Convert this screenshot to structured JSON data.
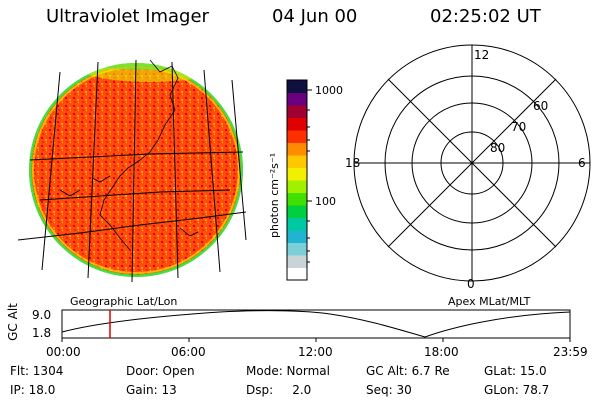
{
  "header": {
    "instrument": "Ultraviolet Imager",
    "date": "04 Jun 00",
    "time": "02:25:02 UT"
  },
  "colorbar": {
    "unit_label": "photon cm⁻²s⁻¹",
    "tick_1000": "1000",
    "tick_100": "100",
    "colors": [
      "#ffffff",
      "#c8d4d8",
      "#7ccfd8",
      "#20b4d0",
      "#00c8a0",
      "#00d040",
      "#40e000",
      "#a0f000",
      "#f0f000",
      "#ffc800",
      "#ff8c00",
      "#ff3000",
      "#e00000",
      "#a00030",
      "#6a0080",
      "#101040"
    ]
  },
  "left_panel": {
    "caption": "Geographic Lat/Lon",
    "disk_fill": "#ff5010",
    "rim_colors": [
      "#ffe000",
      "#a0f020",
      "#40e040"
    ]
  },
  "polar_panel": {
    "caption": "Apex MLat/MLT",
    "mlt_12": "12",
    "mlt_18": "18",
    "mlt_6": "6",
    "mlt_0": "0",
    "lat_60": "60",
    "lat_70": "70",
    "lat_80": "80"
  },
  "altitude_plot": {
    "ylabel": "GC Alt",
    "ytick_top": "9.0",
    "ytick_bottom": "1.8",
    "xticks": [
      "00:00",
      "06:00",
      "12:00",
      "18:00",
      "23:59"
    ],
    "marker_color": "#e00000"
  },
  "footer": {
    "flt": "Flt: 1304",
    "ip": "IP: 18.0",
    "door": "Door: Open",
    "gain": "Gain: 13",
    "mode": "Mode: Normal",
    "dsp": "Dsp:     2.0",
    "gc_alt": "GC Alt: 6.7 Re",
    "seq": "Seq: 30",
    "glat": "GLat: 15.0",
    "glon": "GLon: 78.7"
  }
}
